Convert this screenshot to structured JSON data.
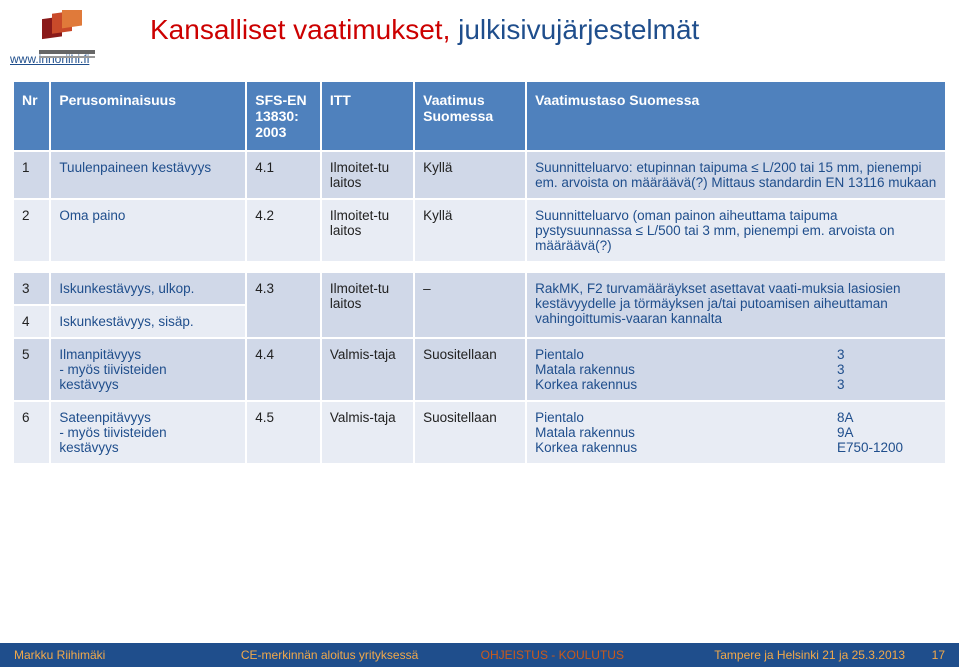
{
  "header": {
    "title_part1": "Kansalliset vaatimukset, ",
    "title_part2": "julkisivujärjestelmät",
    "site_link": "www.innoriihi.fi"
  },
  "columns": {
    "nr": "Nr",
    "per": "Perusominaisuus",
    "sfs": "SFS-EN 13830: 2003",
    "itt": "ITT",
    "vaat": "Vaatimus Suomessa",
    "taso": "Vaatimustaso Suomessa"
  },
  "rows": [
    {
      "nr": "1",
      "per": "Tuulenpaineen kestävyys",
      "sfs": "4.1",
      "itt": "Ilmoitet-tu laitos",
      "vaat": "Kyllä",
      "taso": "Suunnitteluarvo: etupinnan taipuma ≤ L/200 tai 15 mm, pienempi em. arvoista on määräävä(?) Mittaus standardin EN 13116 mukaan",
      "cls": "row-a"
    },
    {
      "nr": "2",
      "per": "Oma paino",
      "sfs": "4.2",
      "itt": "Ilmoitet-tu laitos",
      "vaat": "Kyllä",
      "taso": "Suunnitteluarvo (oman painon aiheuttama taipuma pystysuunnassa ≤ L/500 tai 3 mm, pienempi em. arvoista on määräävä(?)",
      "cls": "row-b"
    }
  ],
  "rows2": [
    {
      "nr": "3",
      "per": "Iskunkestävyys, ulkop.",
      "sfs": "4.3",
      "itt": "Ilmoitet-tu laitos",
      "vaat": "‒",
      "taso": "RakMK, F2 turvamääräykset asettavat vaati-muksia lasiosien kestävyydelle ja törmäyksen ja/tai putoamisen aiheuttaman vahingoittumis-vaaran kannalta",
      "cls": "row-a",
      "rowspan": true
    },
    {
      "nr": "4",
      "per": "Iskunkestävyys, sisäp.",
      "cls": "row-b"
    },
    {
      "nr": "5",
      "per": "Ilmanpitävyys\n - myös tiivisteiden\n   kestävyys",
      "sfs": "4.4",
      "itt": "Valmis-taja",
      "vaat": "Suositellaan",
      "taso_left": "Pientalo\nMatala rakennus\nKorkea rakennus",
      "taso_right": "3\n3\n3",
      "cls": "row-a"
    },
    {
      "nr": "6",
      "per": "Sateenpitävyys\n - myös tiivisteiden\n   kestävyys",
      "sfs": "4.5",
      "itt": "Valmis-taja",
      "vaat": "Suositellaan",
      "taso_left": "Pientalo\nMatala rakennus\nKorkea rakennus",
      "taso_right": "8A\n9A\nE750-1200",
      "cls": "row-b"
    }
  ],
  "footer": {
    "f1": "Markku Riihimäki",
    "f2": "CE-merkinnän aloitus yrityksessä",
    "f3": "OHJEISTUS - KOULUTUS",
    "f4": "Tampere ja Helsinki 21 ja 25.3.2013",
    "f5": "17"
  },
  "colors": {
    "header_bg": "#4f81bd",
    "row_a": "#d0d8e8",
    "row_b": "#e8ecf4",
    "footer_bg": "#1f4e8c",
    "footer_text": "#f2a94a",
    "title_red": "#cc0000",
    "title_blue": "#1f4e8c"
  }
}
